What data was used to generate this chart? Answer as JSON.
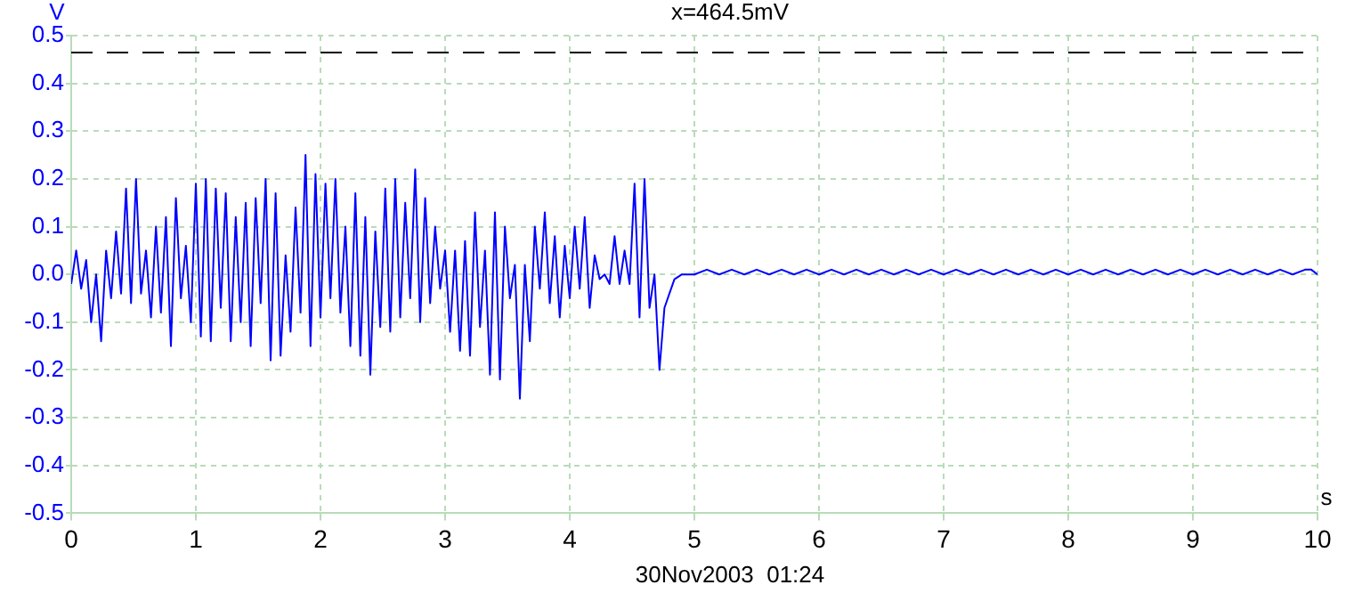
{
  "chart_data": {
    "type": "line",
    "xlabel": "s",
    "ylabel": "V",
    "annotations": [
      "30Nov2003  01:24"
    ],
    "x": [
      0,
      0.04,
      0.08,
      0.12,
      0.16,
      0.2,
      0.24,
      0.28,
      0.32,
      0.36,
      0.4,
      0.44,
      0.48,
      0.52,
      0.56,
      0.6,
      0.64,
      0.68,
      0.72,
      0.76,
      0.8,
      0.84,
      0.88,
      0.92,
      0.96,
      1,
      1.04,
      1.08,
      1.12,
      1.16,
      1.2,
      1.24,
      1.28,
      1.32,
      1.36,
      1.4,
      1.44,
      1.48,
      1.52,
      1.56,
      1.6,
      1.64,
      1.68,
      1.72,
      1.76,
      1.8,
      1.84,
      1.88,
      1.92,
      1.96,
      2,
      2.04,
      2.08,
      2.12,
      2.16,
      2.2,
      2.24,
      2.28,
      2.32,
      2.36,
      2.4,
      2.44,
      2.48,
      2.52,
      2.56,
      2.6,
      2.64,
      2.68,
      2.72,
      2.76,
      2.8,
      2.84,
      2.88,
      2.92,
      2.96,
      3,
      3.04,
      3.08,
      3.12,
      3.16,
      3.2,
      3.24,
      3.28,
      3.32,
      3.36,
      3.4,
      3.44,
      3.48,
      3.52,
      3.56,
      3.6,
      3.64,
      3.68,
      3.72,
      3.76,
      3.8,
      3.84,
      3.88,
      3.92,
      3.96,
      4,
      4.04,
      4.08,
      4.12,
      4.16,
      4.2,
      4.24,
      4.28,
      4.32,
      4.36,
      4.4,
      4.44,
      4.48,
      4.52,
      4.56,
      4.6,
      4.64,
      4.68,
      4.72,
      4.76,
      4.8,
      4.84,
      4.9,
      5,
      5.1,
      5.2,
      5.3,
      5.4,
      5.5,
      5.6,
      5.7,
      5.8,
      5.9,
      6,
      6.1,
      6.2,
      6.3,
      6.4,
      6.5,
      6.6,
      6.7,
      6.8,
      6.9,
      7,
      7.1,
      7.2,
      7.3,
      7.4,
      7.5,
      7.6,
      7.7,
      7.8,
      7.9,
      8,
      8.1,
      8.2,
      8.3,
      8.4,
      8.5,
      8.6,
      8.7,
      8.8,
      8.9,
      9,
      9.1,
      9.2,
      9.3,
      9.4,
      9.5,
      9.6,
      9.7,
      9.8,
      9.9,
      9.95,
      10
    ],
    "series": [
      {
        "color": "#0000ff",
        "values": [
          -0.02,
          0.05,
          -0.03,
          0.03,
          -0.1,
          0,
          -0.14,
          0.05,
          -0.05,
          0.09,
          -0.04,
          0.18,
          -0.06,
          0.2,
          -0.04,
          0.05,
          -0.09,
          0.1,
          -0.08,
          0.12,
          -0.15,
          0.16,
          -0.05,
          0.06,
          -0.1,
          0.19,
          -0.13,
          0.2,
          -0.14,
          0.18,
          -0.07,
          0.17,
          -0.14,
          0.12,
          -0.1,
          0.15,
          -0.15,
          0.16,
          -0.06,
          0.2,
          -0.18,
          0.17,
          -0.17,
          0.04,
          -0.12,
          0.14,
          -0.08,
          0.25,
          -0.15,
          0.21,
          -0.09,
          0.19,
          -0.05,
          0.2,
          -0.08,
          0.1,
          -0.15,
          0.17,
          -0.17,
          0.12,
          -0.21,
          0.09,
          -0.11,
          0.18,
          -0.12,
          0.2,
          -0.09,
          0.15,
          -0.05,
          0.22,
          -0.1,
          0.16,
          -0.06,
          0.1,
          -0.03,
          0.05,
          -0.12,
          0.05,
          -0.16,
          0.07,
          -0.17,
          0.13,
          -0.11,
          0.05,
          -0.21,
          0.13,
          -0.22,
          0.1,
          -0.05,
          0.02,
          -0.26,
          0.02,
          -0.14,
          0.1,
          -0.03,
          0.13,
          -0.06,
          0.08,
          -0.09,
          0.06,
          -0.05,
          0.1,
          -0.03,
          0.12,
          -0.07,
          0.04,
          -0.01,
          0,
          -0.02,
          0.08,
          -0.02,
          0.05,
          -0.02,
          0.19,
          -0.09,
          0.2,
          -0.07,
          0,
          -0.2,
          -0.07,
          -0.04,
          -0.01,
          0,
          0,
          0.01,
          0,
          0.01,
          0,
          0.01,
          0,
          0.01,
          0,
          0.01,
          0,
          0.01,
          0,
          0.01,
          0,
          0.01,
          0,
          0.01,
          0,
          0.01,
          0,
          0.01,
          0,
          0.01,
          0,
          0.01,
          0,
          0.01,
          0,
          0.01,
          0,
          0.01,
          0,
          0.01,
          0,
          0.01,
          0,
          0.01,
          0,
          0.01,
          0,
          0.01,
          0,
          0.01,
          0,
          0.01,
          0,
          0.01,
          0,
          0.01,
          0.01,
          0
        ]
      }
    ],
    "xlim": [
      0,
      10
    ],
    "xticks": [
      0,
      1,
      2,
      3,
      4,
      5,
      6,
      7,
      8,
      9,
      10
    ],
    "ylim": [
      -0.5,
      0.5
    ],
    "yticks": [
      -0.5,
      -0.4,
      -0.3,
      -0.2,
      -0.1,
      {
        "value": 0,
        "label": "0.0"
      },
      0.1,
      0.2,
      0.3,
      0.4,
      0.5
    ],
    "grid": true,
    "legend": false,
    "marker": "none",
    "line_style": "solid",
    "ref_lines": [
      {
        "axis": "y",
        "value": 0.4645,
        "label": "x=464.5mV",
        "color": "#000000",
        "line_style": "dashed"
      }
    ]
  }
}
